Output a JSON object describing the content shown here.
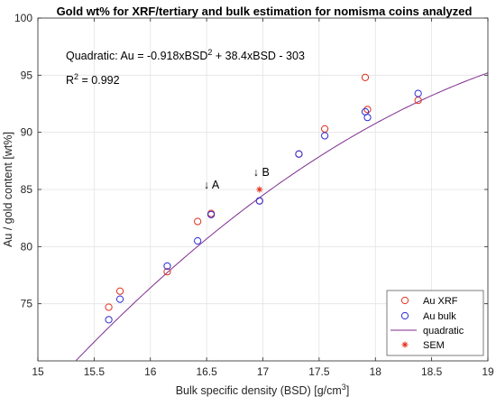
{
  "chart_data": {
    "type": "scatter",
    "title": "Gold wt% for XRF/tertiary and bulk estimation for nomisma coins analyzed",
    "xlabel": "Bulk specific density (BSD) [g/cm",
    "xlabel_sup": "3",
    "xlabel_end": "]",
    "ylabel": "Au / gold content [wt%]",
    "xlim": [
      15,
      19
    ],
    "ylim": [
      70,
      100
    ],
    "xticks": [
      "15",
      "15.5",
      "16",
      "16.5",
      "17",
      "17.5",
      "18",
      "18.5",
      "19"
    ],
    "yticks": [
      "75",
      "80",
      "85",
      "90",
      "95",
      "100"
    ],
    "grid": true,
    "legend_position": "bottom-right",
    "equation_text": {
      "prefix": "Quadratic:  Au = -0.918xBSD",
      "sup": "2",
      "suffix": " + 38.4xBSD - 303"
    },
    "r2_text": {
      "prefix": "R",
      "sup": "2",
      "suffix": " = 0.992"
    },
    "annotations": [
      {
        "text": "↓ A",
        "x": 16.53,
        "y": 85.4
      },
      {
        "text": "↓ B",
        "x": 16.97,
        "y": 86.5
      }
    ],
    "fit": {
      "name": "quadratic",
      "a": -0.918,
      "b": 38.4,
      "c": -303,
      "color": "#7E2F8E"
    },
    "series": [
      {
        "name": "Au XRF",
        "marker": "circle",
        "color": "#E0301E",
        "points": [
          [
            15.63,
            74.7
          ],
          [
            15.73,
            76.1
          ],
          [
            16.15,
            77.8
          ],
          [
            16.42,
            82.2
          ],
          [
            16.54,
            82.9
          ],
          [
            16.97,
            84.0
          ],
          [
            17.32,
            88.1
          ],
          [
            17.55,
            90.3
          ],
          [
            17.91,
            94.8
          ],
          [
            17.93,
            92.0
          ],
          [
            18.38,
            92.8
          ]
        ]
      },
      {
        "name": "Au bulk",
        "marker": "circle",
        "color": "#2B2BD6",
        "points": [
          [
            15.63,
            73.6
          ],
          [
            15.73,
            75.4
          ],
          [
            16.15,
            78.3
          ],
          [
            16.42,
            80.5
          ],
          [
            16.54,
            82.8
          ],
          [
            16.97,
            84.0
          ],
          [
            17.32,
            88.1
          ],
          [
            17.55,
            89.7
          ],
          [
            17.91,
            91.8
          ],
          [
            17.93,
            91.3
          ],
          [
            18.38,
            93.4
          ]
        ]
      },
      {
        "name": "SEM",
        "marker": "asterisk",
        "color": "#E0301E",
        "points": [
          [
            16.97,
            85.0
          ]
        ]
      }
    ],
    "legend": [
      {
        "label": "Au XRF",
        "marker": "circle",
        "color": "#E0301E"
      },
      {
        "label": "Au bulk",
        "marker": "circle",
        "color": "#2B2BD6"
      },
      {
        "label": "quadratic",
        "marker": "line",
        "color": "#7E2F8E"
      },
      {
        "label": "SEM",
        "marker": "asterisk",
        "color": "#E0301E"
      }
    ]
  }
}
